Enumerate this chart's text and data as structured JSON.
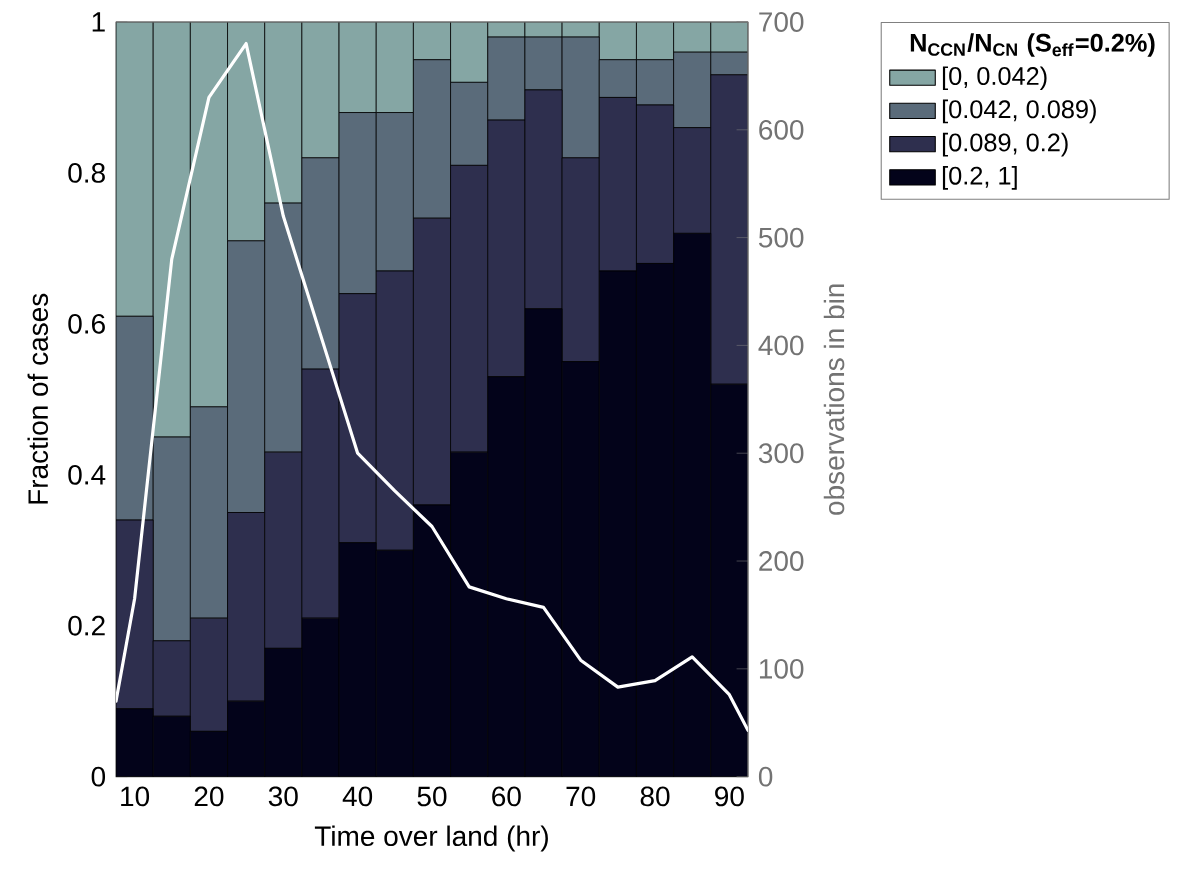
{
  "chart_data": {
    "type": "bar",
    "stacked": true,
    "xlabel": "Time over land (hr)",
    "ylabel": "Fraction of cases",
    "y2label": "observations in bin",
    "legend_title": "N$_{CCN}$/N$_{CN}$ (S$_{eff}$=0.2%)",
    "legend": "top right",
    "x": [
      10,
      15,
      20,
      25,
      30,
      35,
      40,
      45,
      50,
      55,
      60,
      65,
      70,
      75,
      80,
      85,
      90
    ],
    "xlim": [
      7.5,
      92.5
    ],
    "xticks": [
      10,
      20,
      30,
      40,
      50,
      60,
      70,
      80,
      90
    ],
    "ylim": [
      0,
      1
    ],
    "yticks": [
      0,
      0.2,
      0.4,
      0.6,
      0.8,
      1
    ],
    "y2lim": [
      0,
      700
    ],
    "y2ticks": [
      0,
      100,
      200,
      300,
      400,
      500,
      600,
      700
    ],
    "series": [
      {
        "name": "[0.2, 1]",
        "color": "#03031a",
        "values": [
          0.09,
          0.08,
          0.06,
          0.1,
          0.17,
          0.21,
          0.31,
          0.3,
          0.36,
          0.43,
          0.53,
          0.62,
          0.55,
          0.67,
          0.68,
          0.72,
          0.52
        ]
      },
      {
        "name": "[0.089, 0.2)",
        "color": "#2e2f4e",
        "values": [
          0.25,
          0.1,
          0.15,
          0.25,
          0.26,
          0.33,
          0.33,
          0.37,
          0.38,
          0.38,
          0.34,
          0.29,
          0.27,
          0.23,
          0.21,
          0.14,
          0.41
        ]
      },
      {
        "name": "[0.042, 0.089)",
        "color": "#5a6b7a",
        "values": [
          0.27,
          0.27,
          0.28,
          0.36,
          0.33,
          0.28,
          0.24,
          0.21,
          0.21,
          0.11,
          0.11,
          0.07,
          0.16,
          0.05,
          0.06,
          0.1,
          0.03
        ]
      },
      {
        "name": "[0, 0.042)",
        "color": "#85a6a4",
        "values": [
          0.39,
          0.55,
          0.51,
          0.29,
          0.24,
          0.18,
          0.12,
          0.12,
          0.05,
          0.08,
          0.02,
          0.02,
          0.02,
          0.05,
          0.05,
          0.04,
          0.04
        ]
      },
      {
        "type": "line",
        "axis": "y2",
        "color": "#ffffff",
        "x": [
          7.5,
          10,
          15,
          20,
          25,
          30,
          35,
          40,
          45,
          50,
          55,
          60,
          65,
          70,
          75,
          80,
          85,
          90,
          92.5
        ],
        "values": [
          70,
          165,
          480,
          630,
          680,
          520,
          410,
          300,
          265,
          232,
          176,
          165,
          157,
          108,
          83,
          89,
          111,
          76,
          43
        ]
      }
    ]
  }
}
